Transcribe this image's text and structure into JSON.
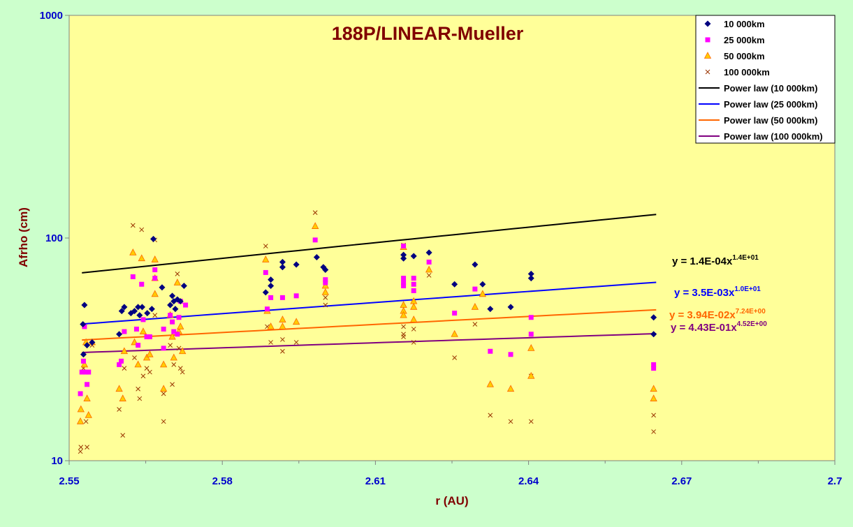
{
  "chart_data": {
    "type": "scatter",
    "title": "188P/LINEAR-Mueller",
    "xlabel": "r (AU)",
    "ylabel": "Afrho (cm)",
    "xlim": [
      2.55,
      2.7
    ],
    "ylim": [
      10,
      1000
    ],
    "y_scale": "log",
    "x_ticks": [
      "2.55",
      "2.58",
      "2.61",
      "2.64",
      "2.67",
      "2.7"
    ],
    "y_ticks": [
      "10",
      "100",
      "1000"
    ],
    "legend_position": "top-right",
    "colors": {
      "page_bg": "#ccffcc",
      "plot_bg": "#ffff99",
      "title": "#800000",
      "axis_label": "#800000",
      "tick_label": "#0000cc",
      "s10k": "#000080",
      "s25k": "#ff00ff",
      "s50k_fill": "#ffcc00",
      "s50k_edge": "#ff6600",
      "s100k": "#993300",
      "fit10k": "#000000",
      "fit25k": "#0000ff",
      "fit50k": "#ff6600",
      "fit100k": "#800080"
    },
    "series": [
      {
        "name": "10 000km",
        "marker": "diamond",
        "points": [
          [
            2.5527,
            41
          ],
          [
            2.5528,
            30
          ],
          [
            2.553,
            50
          ],
          [
            2.5535,
            33
          ],
          [
            2.5545,
            34
          ],
          [
            2.5598,
            37
          ],
          [
            2.5603,
            47
          ],
          [
            2.5608,
            49
          ],
          [
            2.5621,
            46
          ],
          [
            2.5628,
            47
          ],
          [
            2.5635,
            49
          ],
          [
            2.5638,
            45
          ],
          [
            2.5643,
            49
          ],
          [
            2.5653,
            46
          ],
          [
            2.5662,
            48
          ],
          [
            2.5665,
            99
          ],
          [
            2.5682,
            60
          ],
          [
            2.5698,
            50
          ],
          [
            2.5702,
            55
          ],
          [
            2.5705,
            52
          ],
          [
            2.5708,
            48
          ],
          [
            2.5712,
            53
          ],
          [
            2.5718,
            52
          ],
          [
            2.5725,
            61
          ],
          [
            2.5885,
            57
          ],
          [
            2.5895,
            65
          ],
          [
            2.5895,
            61
          ],
          [
            2.5918,
            78
          ],
          [
            2.5918,
            74
          ],
          [
            2.5945,
            76
          ],
          [
            2.5985,
            82
          ],
          [
            2.5998,
            74
          ],
          [
            2.6002,
            72
          ],
          [
            2.6155,
            84
          ],
          [
            2.6155,
            81
          ],
          [
            2.6175,
            83
          ],
          [
            2.6205,
            86
          ],
          [
            2.6255,
            62
          ],
          [
            2.6295,
            76
          ],
          [
            2.631,
            62
          ],
          [
            2.6325,
            48
          ],
          [
            2.6365,
            49
          ],
          [
            2.6405,
            69
          ],
          [
            2.6405,
            66
          ],
          [
            2.6645,
            44
          ],
          [
            2.6645,
            37
          ]
        ]
      },
      {
        "name": "25 000km",
        "marker": "square",
        "points": [
          [
            2.5522,
            20
          ],
          [
            2.5525,
            25
          ],
          [
            2.5528,
            28
          ],
          [
            2.553,
            40
          ],
          [
            2.5533,
            25
          ],
          [
            2.5535,
            22
          ],
          [
            2.5538,
            25
          ],
          [
            2.5598,
            27
          ],
          [
            2.5602,
            28
          ],
          [
            2.5608,
            38
          ],
          [
            2.5625,
            67
          ],
          [
            2.5632,
            39
          ],
          [
            2.5635,
            33
          ],
          [
            2.5642,
            62
          ],
          [
            2.5645,
            43
          ],
          [
            2.5652,
            36
          ],
          [
            2.5658,
            36
          ],
          [
            2.5668,
            72
          ],
          [
            2.5668,
            66
          ],
          [
            2.5685,
            39
          ],
          [
            2.5685,
            32
          ],
          [
            2.5698,
            45
          ],
          [
            2.5702,
            42
          ],
          [
            2.5705,
            38
          ],
          [
            2.5712,
            37
          ],
          [
            2.5715,
            44
          ],
          [
            2.5718,
            52
          ],
          [
            2.5728,
            50
          ],
          [
            2.5885,
            70
          ],
          [
            2.5888,
            48
          ],
          [
            2.5895,
            54
          ],
          [
            2.5918,
            54
          ],
          [
            2.5945,
            55
          ],
          [
            2.5982,
            98
          ],
          [
            2.6002,
            65
          ],
          [
            2.6002,
            63
          ],
          [
            2.6155,
            92
          ],
          [
            2.6155,
            66
          ],
          [
            2.6155,
            63
          ],
          [
            2.6155,
            61
          ],
          [
            2.6175,
            66
          ],
          [
            2.6175,
            62
          ],
          [
            2.6175,
            58
          ],
          [
            2.6205,
            78
          ],
          [
            2.6255,
            46
          ],
          [
            2.6295,
            59
          ],
          [
            2.6325,
            31
          ],
          [
            2.6365,
            30
          ],
          [
            2.6405,
            44
          ],
          [
            2.6405,
            37
          ],
          [
            2.6645,
            27
          ],
          [
            2.6645,
            26
          ]
        ]
      },
      {
        "name": "50 000km",
        "marker": "triangle",
        "points": [
          [
            2.5522,
            15
          ],
          [
            2.5523,
            17
          ],
          [
            2.553,
            27
          ],
          [
            2.5533,
            34
          ],
          [
            2.5535,
            19
          ],
          [
            2.5538,
            16
          ],
          [
            2.5545,
            34
          ],
          [
            2.5598,
            21
          ],
          [
            2.5605,
            19
          ],
          [
            2.5608,
            31
          ],
          [
            2.5625,
            86
          ],
          [
            2.5628,
            34
          ],
          [
            2.5635,
            27
          ],
          [
            2.5642,
            81
          ],
          [
            2.5645,
            38
          ],
          [
            2.5652,
            29
          ],
          [
            2.5658,
            30
          ],
          [
            2.5668,
            80
          ],
          [
            2.5668,
            66
          ],
          [
            2.5668,
            56
          ],
          [
            2.5685,
            27
          ],
          [
            2.5685,
            21
          ],
          [
            2.5698,
            45
          ],
          [
            2.5702,
            36
          ],
          [
            2.5705,
            29
          ],
          [
            2.5712,
            63
          ],
          [
            2.5715,
            38
          ],
          [
            2.5718,
            40
          ],
          [
            2.5722,
            31
          ],
          [
            2.5885,
            80
          ],
          [
            2.5888,
            47
          ],
          [
            2.5895,
            40
          ],
          [
            2.5918,
            43
          ],
          [
            2.5918,
            40
          ],
          [
            2.5945,
            42
          ],
          [
            2.5982,
            113
          ],
          [
            2.6002,
            61
          ],
          [
            2.6002,
            57
          ],
          [
            2.6155,
            91
          ],
          [
            2.6155,
            50
          ],
          [
            2.6155,
            47
          ],
          [
            2.6155,
            45
          ],
          [
            2.6175,
            52
          ],
          [
            2.6175,
            49
          ],
          [
            2.6175,
            43
          ],
          [
            2.6205,
            72
          ],
          [
            2.6255,
            37
          ],
          [
            2.6295,
            49
          ],
          [
            2.631,
            56
          ],
          [
            2.6325,
            22
          ],
          [
            2.6365,
            21
          ],
          [
            2.6405,
            32
          ],
          [
            2.6405,
            24
          ],
          [
            2.6645,
            21
          ],
          [
            2.6645,
            19
          ]
        ]
      },
      {
        "name": "100 000km",
        "marker": "x",
        "points": [
          [
            2.5522,
            11
          ],
          [
            2.5523,
            11.5
          ],
          [
            2.5528,
            26
          ],
          [
            2.5533,
            15
          ],
          [
            2.5535,
            11.5
          ],
          [
            2.5545,
            33
          ],
          [
            2.5598,
            17
          ],
          [
            2.5605,
            13
          ],
          [
            2.5608,
            26
          ],
          [
            2.5625,
            114
          ],
          [
            2.5628,
            29
          ],
          [
            2.5635,
            21
          ],
          [
            2.5638,
            19
          ],
          [
            2.5642,
            109
          ],
          [
            2.5645,
            24
          ],
          [
            2.5652,
            26
          ],
          [
            2.5658,
            25
          ],
          [
            2.5668,
            98
          ],
          [
            2.5668,
            45
          ],
          [
            2.5685,
            20
          ],
          [
            2.5685,
            15
          ],
          [
            2.5698,
            33
          ],
          [
            2.5702,
            22
          ],
          [
            2.5705,
            27
          ],
          [
            2.5712,
            69
          ],
          [
            2.5715,
            32
          ],
          [
            2.5718,
            26
          ],
          [
            2.5722,
            25
          ],
          [
            2.5885,
            92
          ],
          [
            2.5888,
            40
          ],
          [
            2.5895,
            34
          ],
          [
            2.5918,
            35
          ],
          [
            2.5918,
            31
          ],
          [
            2.5945,
            34
          ],
          [
            2.5982,
            130
          ],
          [
            2.6002,
            54
          ],
          [
            2.6002,
            50
          ],
          [
            2.6155,
            93
          ],
          [
            2.6155,
            40
          ],
          [
            2.6155,
            37
          ],
          [
            2.6155,
            36
          ],
          [
            2.6175,
            39
          ],
          [
            2.6175,
            34
          ],
          [
            2.6205,
            68
          ],
          [
            2.6255,
            29
          ],
          [
            2.6295,
            41
          ],
          [
            2.6325,
            16
          ],
          [
            2.6365,
            15
          ],
          [
            2.6405,
            24
          ],
          [
            2.6405,
            15
          ],
          [
            2.6645,
            16
          ],
          [
            2.6645,
            13.5
          ]
        ]
      }
    ],
    "trendlines": [
      {
        "name": "Power law (10 000km)",
        "coef": 0.00014,
        "exp": 14,
        "equation": "y = 1.4E-04x",
        "exponent_label": "1.4E+01"
      },
      {
        "name": "Power law (25 000km)",
        "coef": 0.0035,
        "exp": 10,
        "equation": "y = 3.5E-03x",
        "exponent_label": "1.0E+01"
      },
      {
        "name": "Power law (50 000km)",
        "coef": 0.0394,
        "exp": 7.24,
        "equation": "y = 3.94E-02x",
        "exponent_label": "7.24E+00"
      },
      {
        "name": "Power law (100 000km)",
        "coef": 0.443,
        "exp": 4.52,
        "equation": "y = 4.43E-01x",
        "exponent_label": "4.52E+00"
      }
    ],
    "trend_xrange": [
      2.5525,
      2.665
    ]
  }
}
